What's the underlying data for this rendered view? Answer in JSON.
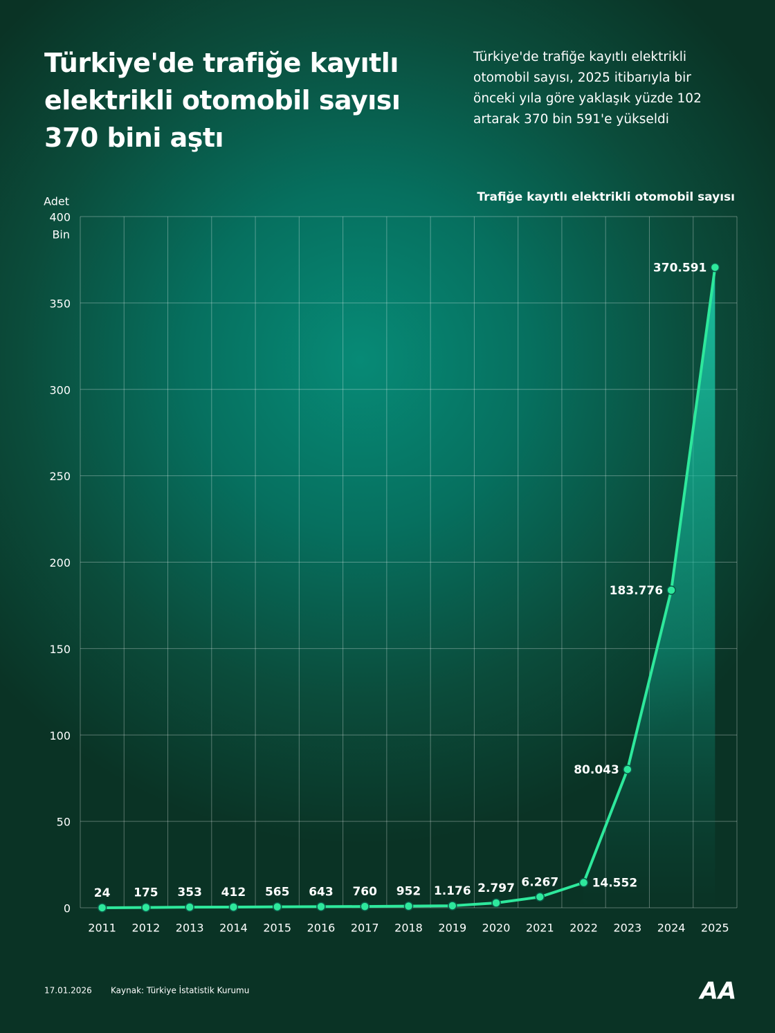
{
  "title": "Türkiye'de trafiğe kayıtlı elektrikli otomobil sayısı 370 bini aştı",
  "subtitle": "Türkiye'de trafiğe kayıtlı elektrikli otomobil sayısı, 2025 itibarıyla bir önceki yıla göre yaklaşık yüzde 102 artarak 370 bin 591'e yükseldi",
  "footer": {
    "date": "17.01.2026",
    "source": "Kaynak: Türkiye İstatistik Kurumu",
    "logo": "AA"
  },
  "chart_data": {
    "type": "line",
    "caption": "Trafiğe kayıtlı elektrikli otomobil sayısı",
    "y_label": "Adet",
    "y_unit": "Bin",
    "categories": [
      "2011",
      "2012",
      "2013",
      "2014",
      "2015",
      "2016",
      "2017",
      "2018",
      "2019",
      "2020",
      "2021",
      "2022",
      "2023",
      "2024",
      "2025"
    ],
    "series": [
      {
        "name": "Trafiğe kayıtlı elektrikli otomobil sayısı",
        "color": "#2ee89c",
        "values": [
          0.024,
          0.175,
          0.353,
          0.412,
          0.565,
          0.643,
          0.76,
          0.952,
          1.176,
          2.797,
          6.267,
          14.552,
          80.043,
          183.776,
          370.591
        ],
        "value_labels": [
          "24",
          "175",
          "353",
          "412",
          "565",
          "643",
          "760",
          "952",
          "1.176",
          "2.797",
          "6.267",
          "14.552",
          "80.043",
          "183.776",
          "370.591"
        ]
      }
    ],
    "ylim": [
      0,
      400
    ],
    "yticks": [
      0,
      50,
      100,
      150,
      200,
      250,
      300,
      350,
      400
    ],
    "grid": true
  }
}
